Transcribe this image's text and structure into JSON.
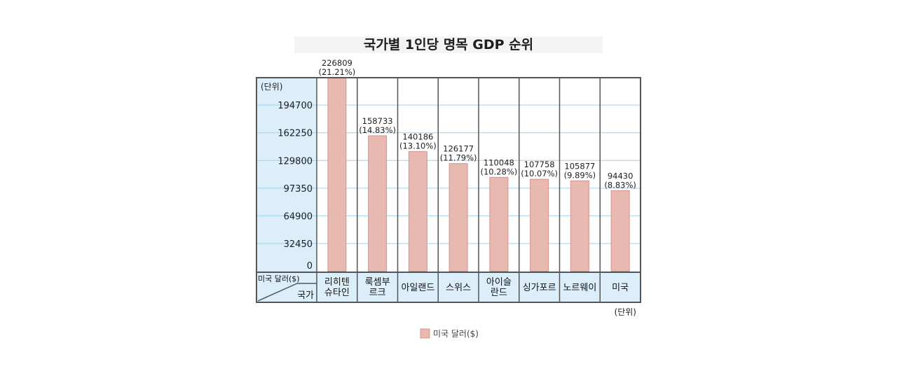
{
  "chart_data": {
    "type": "bar",
    "title": "국가별 1인당 명목 GDP 순위",
    "ylabel": "(단위)",
    "unit_note": "(단위)",
    "corner_top": "미국 달러($)",
    "corner_bottom": "국가",
    "yticks": [
      "194700",
      "162250",
      "129800",
      "97350",
      "64900",
      "32450",
      "0"
    ],
    "ytick_values": [
      194700,
      162250,
      129800,
      97350,
      64900,
      32450,
      0
    ],
    "ylim": [
      0,
      226809
    ],
    "categories": [
      [
        "리히텐",
        "슈타인"
      ],
      [
        "룩셈부",
        "르크"
      ],
      [
        "아일랜드"
      ],
      [
        "스위스"
      ],
      [
        "아이슬",
        "란드"
      ],
      [
        "싱가포르"
      ],
      [
        "노르웨이"
      ],
      [
        "미국"
      ]
    ],
    "series": [
      {
        "name": "미국 달러($)",
        "values": [
          226809,
          158733,
          140186,
          126177,
          110048,
          107758,
          105877,
          94430
        ],
        "value_labels": [
          "226809",
          "158733",
          "140186",
          "126177",
          "110048",
          "107758",
          "105877",
          "94430"
        ],
        "percent_labels": [
          "(21.21%)",
          "(14.83%)",
          "(13.10%)",
          "(11.79%)",
          "(10.28%)",
          "(10.07%)",
          "(9.89%)",
          "(8.83%)"
        ]
      }
    ],
    "legend": {
      "position": "bottom",
      "label": "미국 달러($)"
    },
    "grid": true,
    "colors": {
      "bar_fill": "#e8b9b0",
      "bar_stroke": "#d4948a",
      "panel_bg": "#dceefa",
      "grid_line": "#9fd0ea",
      "border": "#555555"
    }
  }
}
